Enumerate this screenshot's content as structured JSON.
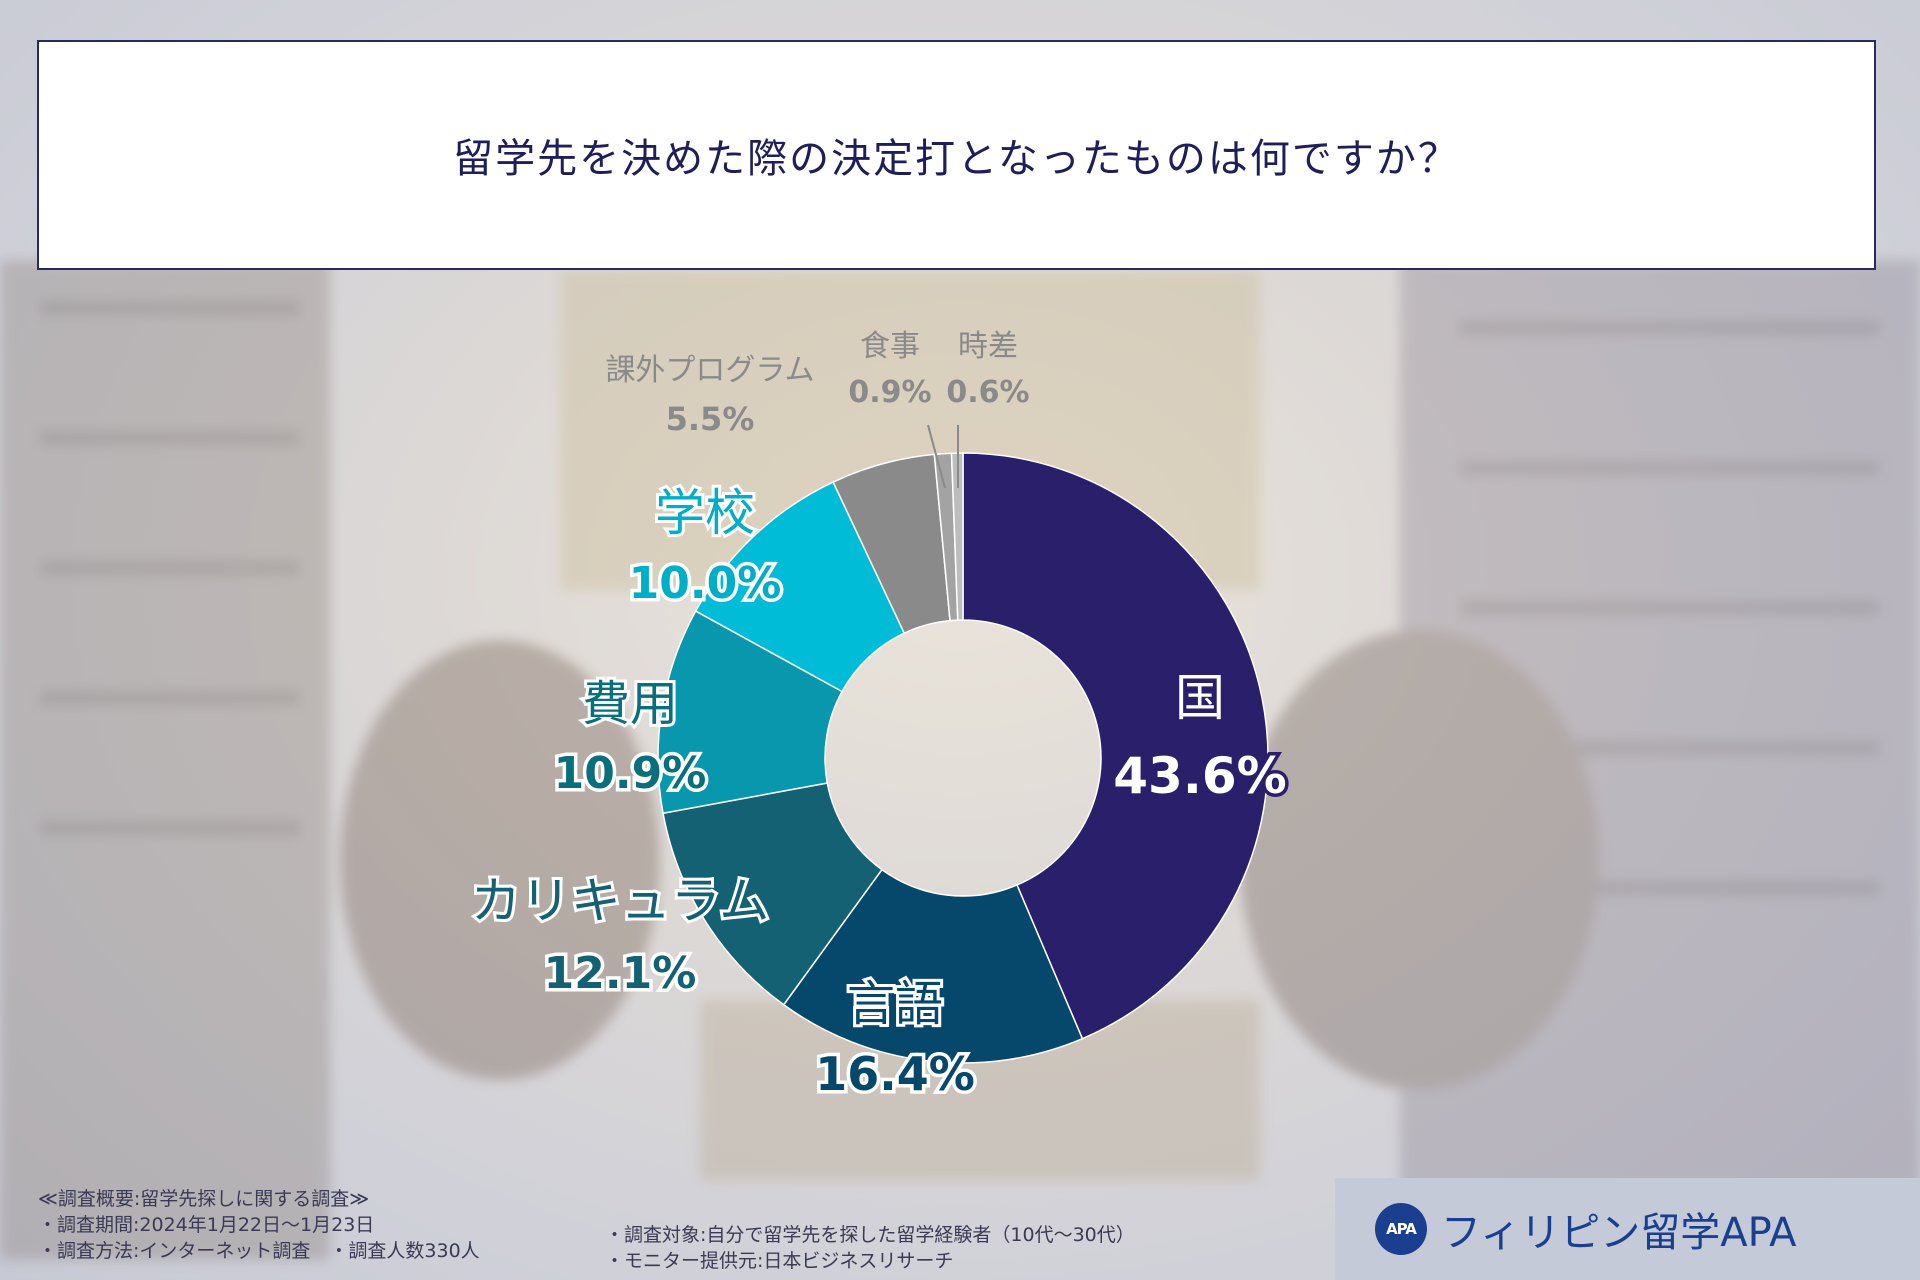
{
  "title": "留学先を決めた際の決定打となったものは何ですか？",
  "chart_data": {
    "type": "pie",
    "style": "donut",
    "title": "留学先を決めた際の決定打となったものは何ですか？",
    "unit": "%",
    "slices": [
      {
        "label": "国",
        "value": 43.6,
        "display": "43.6%",
        "color": "#2a1f6b",
        "label_color": "#ffffff",
        "label_stroke": "#2a1f6b"
      },
      {
        "label": "言語",
        "value": 16.4,
        "display": "16.4%",
        "color": "#05486b",
        "label_color": "#05486b",
        "label_stroke": "#ffffff"
      },
      {
        "label": "カリキュラム",
        "value": 12.1,
        "display": "12.1%",
        "color": "#136173",
        "label_color": "#136173",
        "label_stroke": "#ffffff"
      },
      {
        "label": "費用",
        "value": 10.9,
        "display": "10.9%",
        "color": "#0897ad",
        "label_color": "#0a6f7d",
        "label_stroke": "#ffffff"
      },
      {
        "label": "学校",
        "value": 10.0,
        "display": "10.0%",
        "color": "#00bcd6",
        "label_color": "#00aec8",
        "label_stroke": "#ffffff"
      },
      {
        "label": "課外プログラム",
        "value": 5.5,
        "display": "5.5%",
        "color": "#8a8a8a",
        "label_color": "#8a8a8a",
        "label_stroke": "#ffffff"
      },
      {
        "label": "食事",
        "value": 0.9,
        "display": "0.9%",
        "color": "#a3a3a3",
        "label_color": "#8a8a8a",
        "label_stroke": "#ffffff"
      },
      {
        "label": "時差",
        "value": 0.6,
        "display": "0.6%",
        "color": "#bdbdbd",
        "label_color": "#8a8a8a",
        "label_stroke": "#ffffff"
      }
    ]
  },
  "notes": {
    "heading": "≪調査概要:留学先探しに関する調査≫",
    "period": "・調査期間:2024年1月22日～1月23日",
    "method": "・調査方法:インターネット調査　・調査人数330人",
    "target": "・調査対象:自分で留学先を探した留学経験者（10代～30代）",
    "monitor": "・モニター提供元:日本ビジネスリサーチ"
  },
  "logo": {
    "mark": "APA",
    "text": "フィリピン留学APA",
    "color": "#1b3f8f"
  }
}
